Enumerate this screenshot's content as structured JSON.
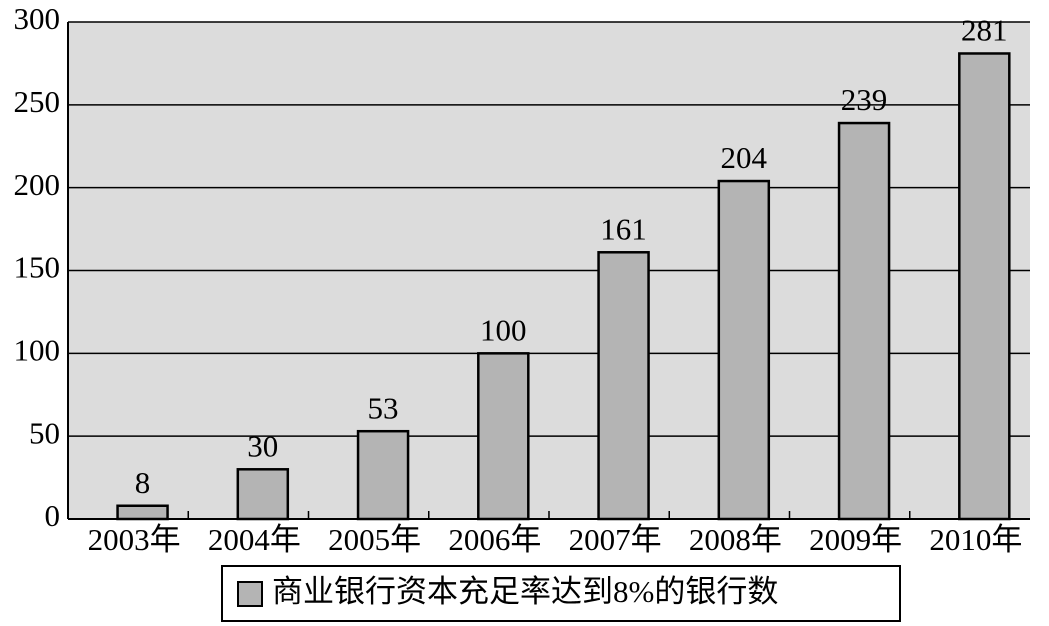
{
  "chart_data": {
    "type": "bar",
    "categories": [
      "2003年",
      "2004年",
      "2005年",
      "2006年",
      "2007年",
      "2008年",
      "2009年",
      "2010年"
    ],
    "series": [
      {
        "name": "商业银行资本充足率达到8%的银行数",
        "color": "#b4b4b4",
        "values": [
          8,
          30,
          53,
          100,
          161,
          204,
          239,
          281
        ]
      }
    ],
    "ylim": [
      0,
      300
    ],
    "yticks": [
      0,
      50,
      100,
      150,
      200,
      250,
      300
    ],
    "grid": true,
    "plot_background": "#dcdcdc",
    "legend": "bottom"
  }
}
